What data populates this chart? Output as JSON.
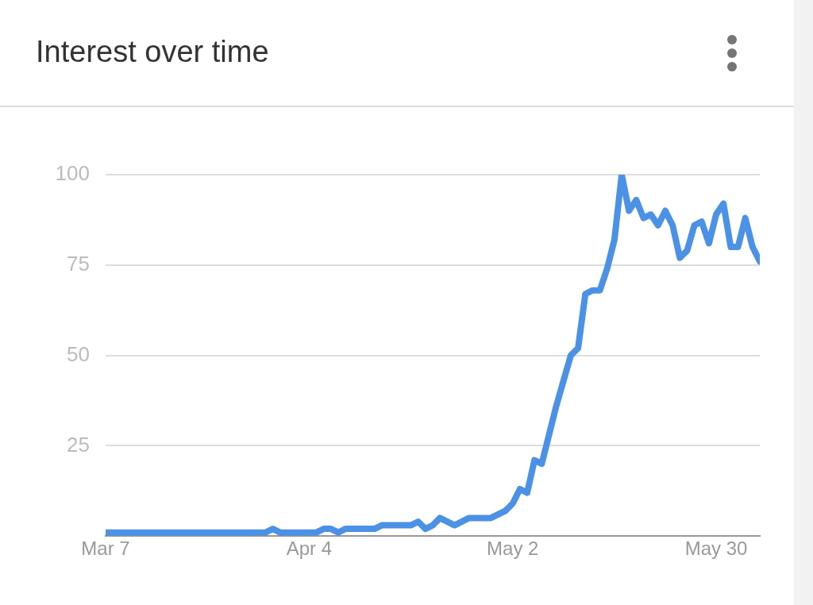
{
  "chart_data": {
    "type": "line",
    "title": "Interest over time",
    "x": [
      "--03-07",
      "--03-29",
      "--03-30",
      "--03-31",
      "--04-05",
      "--04-06",
      "--04-07",
      "--04-08",
      "--04-09",
      "--04-13",
      "--04-14",
      "--04-18",
      "--04-19",
      "--04-20",
      "--04-21",
      "--04-22",
      "--04-24",
      "--04-26",
      "--04-29",
      "--05-01",
      "--05-02",
      "--05-03",
      "--05-04",
      "--05-05",
      "--05-06",
      "--05-07",
      "--05-08",
      "--05-09",
      "--05-10",
      "--05-11",
      "--05-12",
      "--05-13",
      "--05-14",
      "--05-15",
      "--05-16",
      "--05-17",
      "--05-18",
      "--05-19",
      "--05-20",
      "--05-21",
      "--05-22",
      "--05-23",
      "--05-24",
      "--05-25",
      "--05-26",
      "--05-27",
      "--05-28",
      "--05-29",
      "--05-30",
      "--05-31",
      "--06-01",
      "--06-02",
      "--06-03",
      "--06-04",
      "--06-05"
    ],
    "series": [
      {
        "color": "#4b92e6",
        "values": [
          1,
          1,
          2,
          1,
          1,
          2,
          2,
          1,
          2,
          2,
          3,
          3,
          4,
          2,
          3,
          5,
          3,
          5,
          5,
          7,
          9,
          13,
          12,
          21,
          20,
          28,
          36,
          43,
          50,
          52,
          67,
          68,
          68,
          74,
          82,
          100,
          90,
          93,
          88,
          89,
          86,
          90,
          86,
          77,
          79,
          86,
          87,
          81,
          89,
          92,
          80,
          80,
          88,
          80,
          76
        ]
      }
    ],
    "xlim": [
      "--03-07",
      "--06-05"
    ],
    "xticks": [
      {
        "value": "--03-07",
        "label": "Mar 7"
      },
      {
        "value": "--04-04",
        "label": "Apr 4"
      },
      {
        "value": "--05-02",
        "label": "May 2"
      },
      {
        "value": "--05-30",
        "label": "May 30"
      }
    ],
    "ylim": [
      0,
      100
    ],
    "yticks": [
      {
        "value": 0,
        "label": null
      },
      25,
      50,
      75,
      100
    ],
    "grid": "y",
    "legend": false,
    "marker": "none",
    "line_style": "solid"
  }
}
